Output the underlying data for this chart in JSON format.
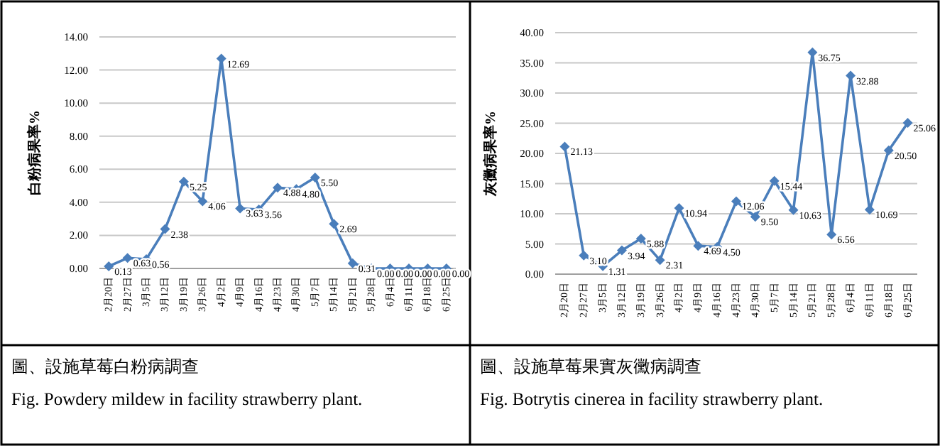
{
  "chart_data": [
    {
      "type": "line",
      "ylabel": "白粉病果率%",
      "categories": [
        "2月20日",
        "2月27日",
        "3月5日",
        "3月12日",
        "3月19日",
        "3月26日",
        "4月2日",
        "4月9日",
        "4月16日",
        "4月23日",
        "4月30日",
        "5月7日",
        "5月14日",
        "5月21日",
        "5月28日",
        "6月4日",
        "6月11日",
        "6月18日",
        "6月25日"
      ],
      "series": [
        {
          "color": "#4a7ebb",
          "values": [
            0.13,
            0.63,
            0.56,
            2.38,
            5.25,
            4.06,
            12.69,
            3.63,
            3.56,
            4.88,
            4.8,
            5.5,
            2.69,
            0.31,
            0.0,
            0.0,
            0.0,
            0.0,
            0.0
          ],
          "value_labels": [
            "0.13",
            "0.63",
            "0.56",
            "2.38",
            "5.25",
            "4.06",
            "12.69",
            "3.63",
            "3.56",
            "4.88",
            "4.80",
            "5.50",
            "2.69",
            "0.31",
            "0.00",
            "0.00",
            "0.00",
            "0.00",
            "0.00"
          ]
        }
      ],
      "ylim": [
        0,
        14
      ],
      "yticks": [
        {
          "value": 0,
          "label": "0.00"
        },
        {
          "value": 2,
          "label": "2.00"
        },
        {
          "value": 4,
          "label": "4.00"
        },
        {
          "value": 6,
          "label": "6.00"
        },
        {
          "value": 8,
          "label": "8.00"
        },
        {
          "value": 10,
          "label": "10.00"
        },
        {
          "value": 12,
          "label": "12.00"
        },
        {
          "value": 14,
          "label": "14.00"
        }
      ],
      "grid": "y",
      "marker": "diamond",
      "line_style": "solid",
      "annotations": [
        "圖、設施草莓白粉病調查",
        "Fig. Powdery mildew in facility strawberry plant."
      ]
    },
    {
      "type": "line",
      "ylabel": "灰黴病果率%",
      "categories": [
        "2月20日",
        "2月27日",
        "3月5日",
        "3月12日",
        "3月19日",
        "3月26日",
        "4月2日",
        "4月9日",
        "4月16日",
        "4月23日",
        "4月30日",
        "5月7日",
        "5月14日",
        "5月21日",
        "5月28日",
        "6月4日",
        "6月11日",
        "6月18日",
        "6月25日"
      ],
      "series": [
        {
          "color": "#4a7ebb",
          "values": [
            21.13,
            3.1,
            1.31,
            3.94,
            5.88,
            2.31,
            10.94,
            4.69,
            4.5,
            12.06,
            9.5,
            15.44,
            10.63,
            36.75,
            6.56,
            32.88,
            10.69,
            20.5,
            25.06
          ],
          "value_labels": [
            "21.13",
            "3.10",
            "1.31",
            "3.94",
            "5.88",
            "2.31",
            "10.94",
            "4.69",
            "4.50",
            "12.06",
            "9.50",
            "15.44",
            "10.63",
            "36.75",
            "6.56",
            "32.88",
            "10.69",
            "20.50",
            "25.06"
          ]
        }
      ],
      "ylim": [
        0,
        40
      ],
      "yticks": [
        {
          "value": 0,
          "label": "0.00"
        },
        {
          "value": 5,
          "label": "5.00"
        },
        {
          "value": 10,
          "label": "10.00"
        },
        {
          "value": 15,
          "label": "15.00"
        },
        {
          "value": 20,
          "label": "20.00"
        },
        {
          "value": 25,
          "label": "25.00"
        },
        {
          "value": 30,
          "label": "30.00"
        },
        {
          "value": 35,
          "label": "35.00"
        },
        {
          "value": 40,
          "label": "40.00"
        }
      ],
      "grid": "y",
      "marker": "diamond",
      "line_style": "solid",
      "annotations": [
        "圖、設施草莓果實灰黴病調查",
        "Fig. Botrytis cinerea in facility strawberry plant."
      ]
    }
  ]
}
